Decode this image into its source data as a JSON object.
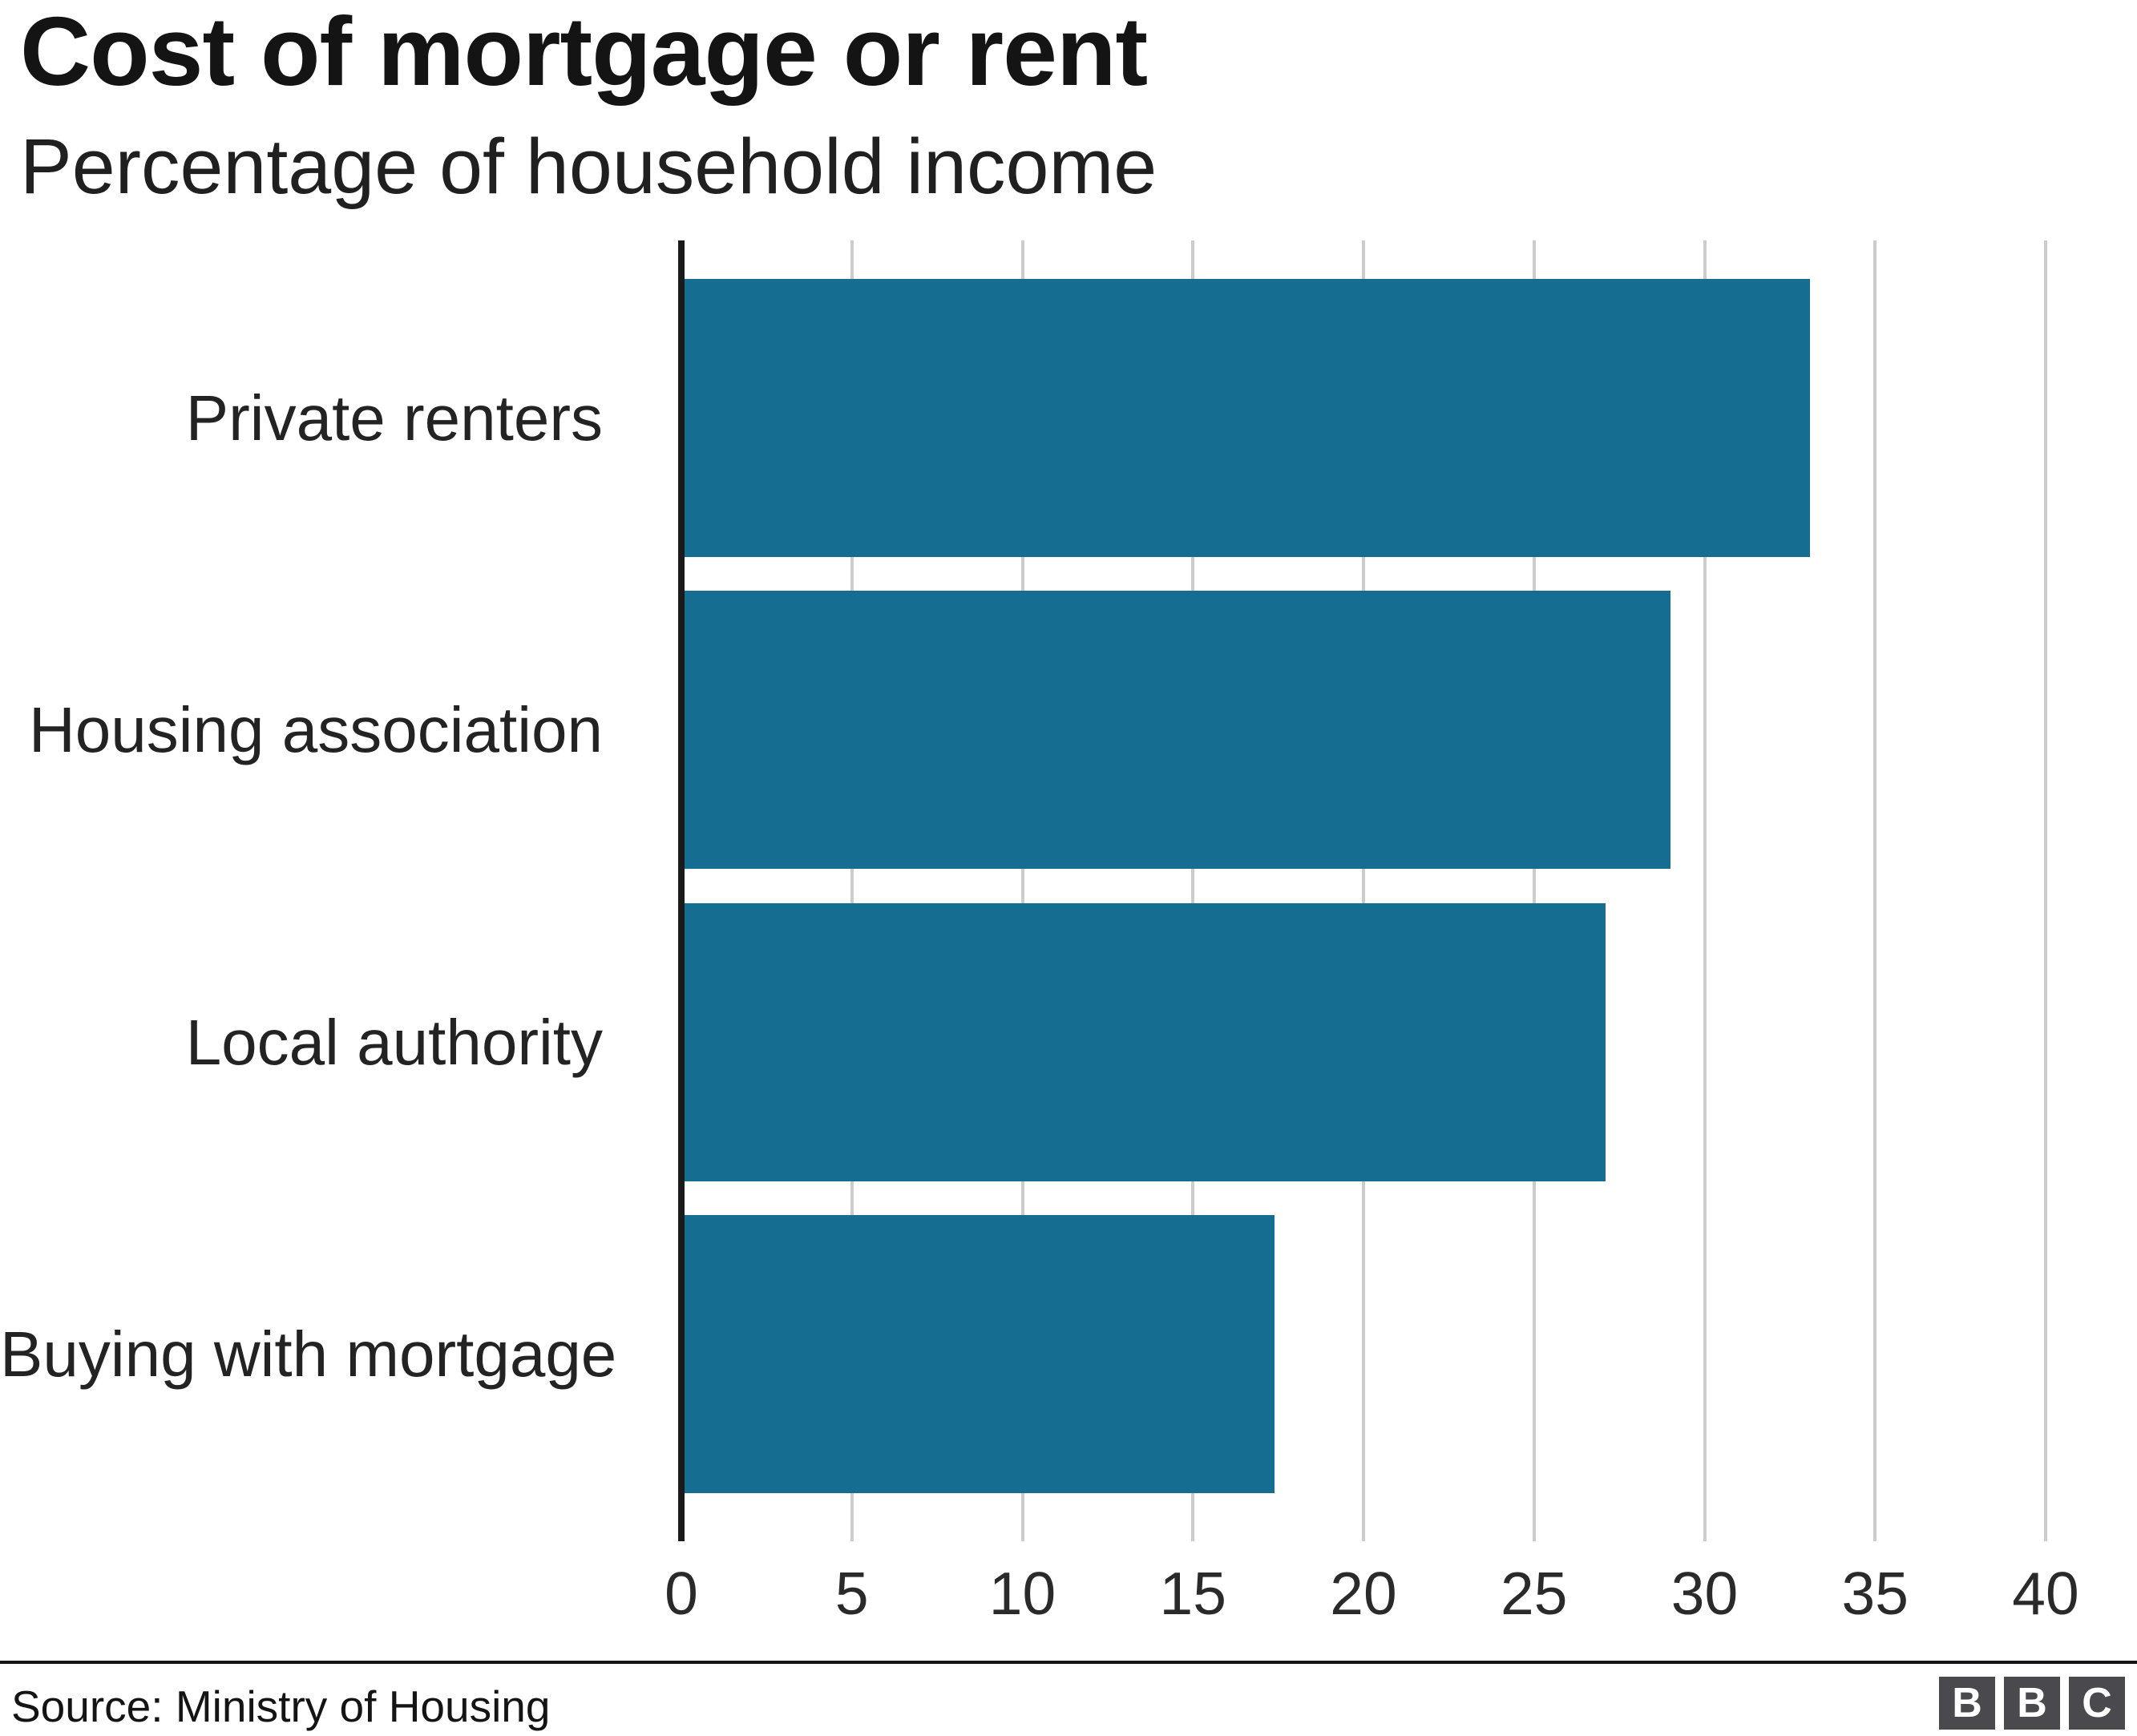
{
  "chart_data": {
    "type": "bar",
    "orientation": "horizontal",
    "title": "Cost of mortgage or rent",
    "subtitle": "Percentage of household income",
    "categories": [
      "Private renters",
      "Housing association",
      "Local authority",
      "Buying with mortgage"
    ],
    "values": [
      33,
      28.9,
      27,
      17.3
    ],
    "xlabel": "",
    "ylabel": "",
    "xlim": [
      0,
      40
    ],
    "xticks": [
      0,
      5,
      10,
      15,
      20,
      25,
      30,
      35,
      40
    ],
    "grid": true,
    "legend": false,
    "bar_color": "#156D92",
    "grid_color": "#CCCCCC",
    "axis_color": "#1A1A1A"
  },
  "footer": {
    "source": "Source: Ministry of Housing",
    "logo": {
      "letters": [
        "B",
        "B",
        "C"
      ],
      "square_color": "#4A4A4E",
      "letter_color": "#FFFFFF"
    }
  }
}
